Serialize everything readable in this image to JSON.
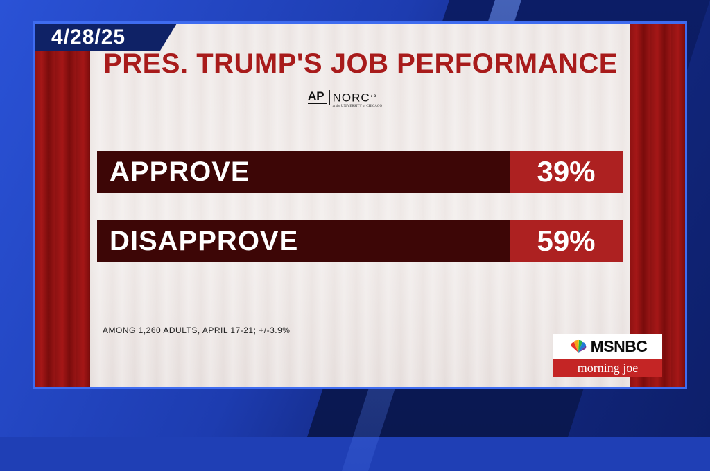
{
  "date": "4/28/25",
  "title": "PRES. TRUMP'S JOB PERFORMANCE",
  "source_logo": {
    "left_mark": "AP",
    "right_mark": "NORC",
    "right_superscript": "75",
    "subtitle": "at the UNIVERSITY of CHICAGO"
  },
  "results": [
    {
      "label": "APPROVE",
      "value": "39%"
    },
    {
      "label": "DISAPPROVE",
      "value": "59%"
    }
  ],
  "footnote": "AMONG 1,260 ADULTS, APRIL 17-21; +/-3.9%",
  "network": {
    "name": "MSNBC",
    "show": "morning joe"
  },
  "colors": {
    "title_red": "#a81b1b",
    "bar_dark": "#3d0606",
    "value_red": "#ad2121",
    "date_tag_navy": "#0f2266",
    "frame_blue": "#3f6cf0"
  }
}
